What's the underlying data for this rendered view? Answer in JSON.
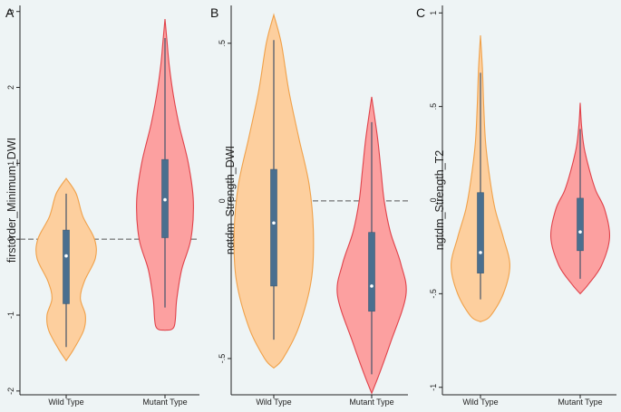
{
  "colors": {
    "background": "#eef4f5",
    "wild_fill": "#fdcf9e",
    "wild_stroke": "#f0a14a",
    "mutant_fill": "#fca0a0",
    "mutant_stroke": "#e0424a",
    "box": "#4a6f8f",
    "whisker": "#44546a",
    "median": "#ffffff",
    "ref_line": "#555555",
    "axis": "#222222"
  },
  "chart_data": [
    {
      "panel": "A",
      "type": "violin",
      "ylabel": "firstorder_Minimum_DWI",
      "ylim": [
        -2.05,
        3.08
      ],
      "yticks": [
        -2,
        -1,
        0,
        1,
        2,
        3
      ],
      "ytick_labels": [
        "-2",
        "-1",
        "0",
        "1",
        "2",
        "3"
      ],
      "reference_line": 0,
      "categories": [
        "Wild Type",
        "Mutant Type"
      ],
      "series": [
        {
          "name": "Wild Type",
          "median": -0.22,
          "q1": -0.85,
          "q3": 0.12,
          "whisker_low": -1.42,
          "whisker_high": 0.6,
          "density": [
            [
              -1.6,
              0.0
            ],
            [
              -1.45,
              0.18
            ],
            [
              -1.2,
              0.42
            ],
            [
              -1.0,
              0.46
            ],
            [
              -0.78,
              0.34
            ],
            [
              -0.55,
              0.44
            ],
            [
              -0.25,
              0.7
            ],
            [
              0.0,
              0.68
            ],
            [
              0.3,
              0.4
            ],
            [
              0.6,
              0.24
            ],
            [
              0.8,
              0.0
            ]
          ]
        },
        {
          "name": "Mutant Type",
          "median": 0.52,
          "q1": 0.02,
          "q3": 1.05,
          "whisker_low": -0.9,
          "whisker_high": 2.65,
          "density": [
            [
              -1.2,
              0.0
            ],
            [
              -1.15,
              0.22
            ],
            [
              -0.8,
              0.28
            ],
            [
              -0.4,
              0.4
            ],
            [
              0.0,
              0.62
            ],
            [
              0.5,
              0.68
            ],
            [
              1.0,
              0.56
            ],
            [
              1.5,
              0.34
            ],
            [
              1.9,
              0.2
            ],
            [
              2.3,
              0.1
            ],
            [
              2.6,
              0.05
            ],
            [
              2.9,
              0.0
            ]
          ]
        }
      ]
    },
    {
      "panel": "B",
      "type": "violin",
      "ylabel": "ngtdm_Strength_DWI",
      "ylim": [
        -0.615,
        0.62
      ],
      "yticks": [
        -0.5,
        0,
        0.5
      ],
      "ytick_labels": [
        "-.5",
        "0",
        ".5"
      ],
      "reference_line": 0,
      "categories": [
        "Wild Type",
        "Mutant Type"
      ],
      "series": [
        {
          "name": "Wild Type",
          "median": -0.07,
          "q1": -0.27,
          "q3": 0.1,
          "whisker_low": -0.44,
          "whisker_high": 0.51,
          "density": [
            [
              -0.53,
              0.0
            ],
            [
              -0.5,
              0.22
            ],
            [
              -0.4,
              0.6
            ],
            [
              -0.25,
              0.9
            ],
            [
              -0.1,
              0.95
            ],
            [
              0.05,
              0.85
            ],
            [
              0.2,
              0.6
            ],
            [
              0.35,
              0.36
            ],
            [
              0.5,
              0.18
            ],
            [
              0.59,
              0.0
            ]
          ]
        },
        {
          "name": "Mutant Type",
          "median": -0.27,
          "q1": -0.35,
          "q3": -0.1,
          "whisker_low": -0.55,
          "whisker_high": 0.25,
          "density": [
            [
              -0.61,
              0.0
            ],
            [
              -0.55,
              0.18
            ],
            [
              -0.45,
              0.45
            ],
            [
              -0.3,
              0.82
            ],
            [
              -0.2,
              0.7
            ],
            [
              -0.1,
              0.45
            ],
            [
              0.0,
              0.3
            ],
            [
              0.1,
              0.22
            ],
            [
              0.2,
              0.14
            ],
            [
              0.33,
              0.0
            ]
          ]
        }
      ]
    },
    {
      "panel": "C",
      "type": "violin",
      "ylabel": "ngtdm_Strength_T2",
      "ylim": [
        -1.04,
        1.04
      ],
      "yticks": [
        -1,
        -0.5,
        0,
        0.5,
        1
      ],
      "ytick_labels": [
        "-1",
        "-.5",
        "0",
        ".5",
        "1"
      ],
      "reference_line": null,
      "categories": [
        "Wild Type",
        "Mutant Type"
      ],
      "series": [
        {
          "name": "Wild Type",
          "median": -0.28,
          "q1": -0.39,
          "q3": 0.04,
          "whisker_low": -0.53,
          "whisker_high": 0.68,
          "density": [
            [
              -0.65,
              0.0
            ],
            [
              -0.62,
              0.3
            ],
            [
              -0.5,
              0.7
            ],
            [
              -0.35,
              0.9
            ],
            [
              -0.2,
              0.7
            ],
            [
              -0.05,
              0.45
            ],
            [
              0.1,
              0.3
            ],
            [
              0.3,
              0.16
            ],
            [
              0.5,
              0.1
            ],
            [
              0.7,
              0.06
            ],
            [
              0.88,
              0.0
            ]
          ]
        },
        {
          "name": "Mutant Type",
          "median": -0.17,
          "q1": -0.27,
          "q3": 0.01,
          "whisker_low": -0.42,
          "whisker_high": 0.38,
          "density": [
            [
              -0.5,
              0.0
            ],
            [
              -0.45,
              0.25
            ],
            [
              -0.35,
              0.65
            ],
            [
              -0.2,
              0.9
            ],
            [
              -0.05,
              0.75
            ],
            [
              0.05,
              0.48
            ],
            [
              0.15,
              0.3
            ],
            [
              0.28,
              0.12
            ],
            [
              0.4,
              0.04
            ],
            [
              0.52,
              0.0
            ]
          ]
        }
      ]
    }
  ]
}
